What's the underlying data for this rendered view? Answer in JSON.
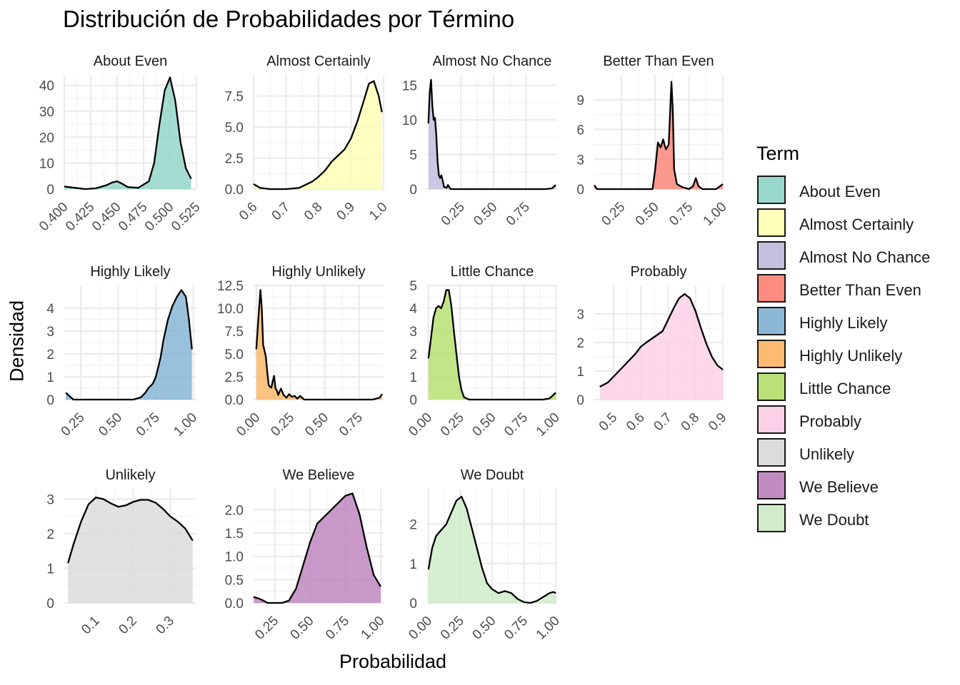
{
  "chart_data": {
    "type": "area",
    "title": "Distribución de Probabilidades por Término",
    "xlabel": "Probabilidad",
    "ylabel": "Densidad",
    "legend_title": "Term",
    "legend_position": "right",
    "grid": true,
    "panels": [
      {
        "name": "About Even",
        "color": "#8DD3C7",
        "xlim": [
          0.4,
          0.525
        ],
        "ylim": [
          0,
          44
        ],
        "x_ticks": [
          0.4,
          0.425,
          0.45,
          0.475,
          0.5,
          0.525
        ],
        "x_tick_labels": [
          "0.400",
          "0.425",
          "0.450",
          "0.475",
          "0.500",
          "0.525"
        ],
        "y_ticks": [
          0,
          10,
          20,
          30,
          40
        ],
        "y_tick_labels": [
          "0",
          "10",
          "20",
          "30",
          "40"
        ],
        "x": [
          0.4,
          0.41,
          0.42,
          0.43,
          0.44,
          0.445,
          0.45,
          0.455,
          0.46,
          0.47,
          0.48,
          0.485,
          0.49,
          0.495,
          0.5,
          0.505,
          0.51,
          0.515,
          0.52
        ],
        "y": [
          1,
          0.5,
          0,
          0.3,
          1.5,
          2.5,
          3,
          2,
          0.8,
          0.5,
          3,
          10,
          25,
          38,
          43,
          34,
          18,
          8,
          4
        ]
      },
      {
        "name": "Almost Certainly",
        "color": "#FFFFB3",
        "xlim": [
          0.6,
          1.0
        ],
        "ylim": [
          0,
          9.2
        ],
        "x_ticks": [
          0.6,
          0.7,
          0.8,
          0.9,
          1.0
        ],
        "x_tick_labels": [
          "0.6",
          "0.7",
          "0.8",
          "0.9",
          "1.0"
        ],
        "y_ticks": [
          0,
          2.5,
          5,
          7.5
        ],
        "y_tick_labels": [
          "0.0",
          "2.5",
          "5.0",
          "7.5"
        ],
        "x": [
          0.6,
          0.62,
          0.65,
          0.7,
          0.74,
          0.78,
          0.8,
          0.82,
          0.84,
          0.86,
          0.88,
          0.9,
          0.92,
          0.94,
          0.955,
          0.97,
          0.985,
          0.995
        ],
        "y": [
          0.4,
          0.1,
          0,
          0,
          0.1,
          0.6,
          1.0,
          1.5,
          2.2,
          2.7,
          3.2,
          4.1,
          5.5,
          7.2,
          8.5,
          8.7,
          7.5,
          6.2
        ]
      },
      {
        "name": "Almost No Chance",
        "color": "#BEBADA",
        "xlim": [
          -0.01,
          0.99
        ],
        "ylim": [
          0,
          16.5
        ],
        "x_ticks": [
          0.25,
          0.5,
          0.75
        ],
        "x_tick_labels": [
          "0.25",
          "0.50",
          "0.75"
        ],
        "y_ticks": [
          0,
          5,
          10,
          15
        ],
        "y_tick_labels": [
          "0",
          "5",
          "10",
          "15"
        ],
        "x": [
          0,
          0.01,
          0.02,
          0.03,
          0.04,
          0.05,
          0.06,
          0.07,
          0.08,
          0.09,
          0.1,
          0.11,
          0.12,
          0.14,
          0.15,
          0.17,
          0.2,
          0.5,
          0.9,
          0.95,
          0.98
        ],
        "y": [
          9.5,
          14,
          15.8,
          12,
          10,
          10.3,
          8,
          4,
          2,
          1.6,
          2,
          1.2,
          0.3,
          0.2,
          0.6,
          0,
          0,
          0,
          0,
          0.1,
          0.6
        ]
      },
      {
        "name": "Better Than Even",
        "color": "#FB8072",
        "xlim": [
          0.05,
          1.0
        ],
        "ylim": [
          0,
          11.5
        ],
        "x_ticks": [
          0.25,
          0.5,
          0.75,
          1.0
        ],
        "x_tick_labels": [
          "0.25",
          "0.50",
          "0.75",
          "1.00"
        ],
        "y_ticks": [
          0,
          3,
          6,
          9
        ],
        "y_tick_labels": [
          "0",
          "3",
          "6",
          "9"
        ],
        "x": [
          0.05,
          0.07,
          0.1,
          0.3,
          0.48,
          0.5,
          0.52,
          0.54,
          0.56,
          0.57,
          0.58,
          0.6,
          0.62,
          0.63,
          0.64,
          0.66,
          0.7,
          0.75,
          0.78,
          0.8,
          0.82,
          0.85,
          0.9,
          0.95,
          1.0
        ],
        "y": [
          0.4,
          0,
          0,
          0,
          0,
          2,
          4.7,
          4.2,
          5,
          4.4,
          4,
          4.5,
          10.8,
          8,
          2,
          0.5,
          0.2,
          0,
          0.3,
          1.1,
          0.3,
          0,
          0,
          0,
          0.5
        ]
      },
      {
        "name": "Highly Likely",
        "color": "#80B1D3",
        "xlim": [
          0.14,
          1.02
        ],
        "ylim": [
          0,
          5.0
        ],
        "x_ticks": [
          0.25,
          0.5,
          0.75,
          1.0
        ],
        "x_tick_labels": [
          "0.25",
          "0.50",
          "0.75",
          "1.00"
        ],
        "y_ticks": [
          0,
          1,
          2,
          3,
          4
        ],
        "y_tick_labels": [
          "0",
          "1",
          "2",
          "3",
          "4"
        ],
        "x": [
          0.15,
          0.2,
          0.25,
          0.5,
          0.6,
          0.65,
          0.68,
          0.7,
          0.73,
          0.75,
          0.78,
          0.8,
          0.83,
          0.86,
          0.89,
          0.92,
          0.95,
          0.97,
          0.99
        ],
        "y": [
          0.3,
          0,
          0,
          0,
          0,
          0.1,
          0.3,
          0.5,
          0.7,
          1.0,
          1.8,
          2.6,
          3.5,
          4.1,
          4.5,
          4.8,
          4.5,
          3.5,
          2.2
        ]
      },
      {
        "name": "Highly Unlikely",
        "color": "#FDB462",
        "xlim": [
          -0.02,
          0.93
        ],
        "ylim": [
          0,
          12.5
        ],
        "x_ticks": [
          0,
          0.25,
          0.5,
          0.75
        ],
        "x_tick_labels": [
          "0.00",
          "0.25",
          "0.50",
          "0.75"
        ],
        "y_ticks": [
          0,
          2.5,
          5,
          7.5,
          10,
          12.5
        ],
        "y_tick_labels": [
          "0.0",
          "2.5",
          "5.0",
          "7.5",
          "10.0",
          "12.5"
        ],
        "x": [
          0,
          0.02,
          0.03,
          0.04,
          0.05,
          0.07,
          0.08,
          0.09,
          0.1,
          0.11,
          0.12,
          0.13,
          0.14,
          0.15,
          0.16,
          0.18,
          0.2,
          0.22,
          0.24,
          0.26,
          0.28,
          0.3,
          0.32,
          0.35,
          0.5,
          0.85,
          0.9,
          0.92
        ],
        "y": [
          5.5,
          10,
          12,
          10,
          6,
          4.7,
          3,
          1.6,
          1.4,
          1.3,
          2,
          2.6,
          1.2,
          1,
          0.5,
          1.2,
          0.5,
          0.2,
          0.6,
          0.3,
          0.4,
          0.1,
          0.4,
          0,
          0,
          0,
          0.2,
          0.6
        ]
      },
      {
        "name": "Little Chance",
        "color": "#B3DE69",
        "xlim": [
          -0.01,
          1.01
        ],
        "ylim": [
          0,
          5.0
        ],
        "x_ticks": [
          0,
          0.25,
          0.5,
          0.75,
          1.0
        ],
        "x_tick_labels": [
          "0.00",
          "0.25",
          "0.50",
          "0.75",
          "1.00"
        ],
        "y_ticks": [
          0,
          1,
          2,
          3,
          4,
          5
        ],
        "y_tick_labels": [
          "0",
          "1",
          "2",
          "3",
          "4",
          "5"
        ],
        "x": [
          0,
          0.02,
          0.04,
          0.06,
          0.08,
          0.1,
          0.12,
          0.14,
          0.16,
          0.18,
          0.2,
          0.22,
          0.24,
          0.26,
          0.28,
          0.3,
          0.32,
          0.4,
          0.9,
          0.95,
          1.0
        ],
        "y": [
          1.8,
          2.7,
          3.6,
          4.0,
          4.1,
          4.0,
          4.3,
          4.8,
          4.8,
          4.1,
          3.0,
          2.0,
          1.0,
          0.4,
          0.1,
          0.05,
          0,
          0,
          0,
          0.05,
          0.3
        ]
      },
      {
        "name": "Probably",
        "color": "#FCCDE5",
        "xlim": [
          0.43,
          0.9
        ],
        "ylim": [
          0,
          4.0
        ],
        "x_ticks": [
          0.5,
          0.6,
          0.7,
          0.8,
          0.9
        ],
        "x_tick_labels": [
          "0.5",
          "0.6",
          "0.7",
          "0.8",
          "0.9"
        ],
        "y_ticks": [
          0,
          1,
          2,
          3
        ],
        "y_tick_labels": [
          "0",
          "1",
          "2",
          "3"
        ],
        "x": [
          0.45,
          0.48,
          0.5,
          0.52,
          0.55,
          0.58,
          0.6,
          0.62,
          0.65,
          0.68,
          0.7,
          0.72,
          0.74,
          0.76,
          0.78,
          0.8,
          0.82,
          0.84,
          0.86,
          0.88,
          0.9
        ],
        "y": [
          0.45,
          0.6,
          0.8,
          1.0,
          1.3,
          1.6,
          1.85,
          2.0,
          2.2,
          2.4,
          2.8,
          3.2,
          3.55,
          3.7,
          3.55,
          3.1,
          2.5,
          1.95,
          1.5,
          1.2,
          1.05
        ]
      },
      {
        "name": "Unlikely",
        "color": "#D9D9D9",
        "xlim": [
          0.015,
          0.37
        ],
        "ylim": [
          0,
          3.3
        ],
        "x_ticks": [
          0.1,
          0.2,
          0.3
        ],
        "x_tick_labels": [
          "0.1",
          "0.2",
          "0.3"
        ],
        "y_ticks": [
          0,
          1,
          2,
          3
        ],
        "y_tick_labels": [
          "0",
          "1",
          "2",
          "3"
        ],
        "x": [
          0.025,
          0.04,
          0.06,
          0.08,
          0.1,
          0.12,
          0.14,
          0.16,
          0.18,
          0.2,
          0.22,
          0.24,
          0.26,
          0.28,
          0.3,
          0.32,
          0.34,
          0.36
        ],
        "y": [
          1.15,
          1.7,
          2.35,
          2.85,
          3.05,
          3.0,
          2.88,
          2.78,
          2.82,
          2.92,
          2.98,
          2.98,
          2.9,
          2.72,
          2.5,
          2.35,
          2.15,
          1.8
        ]
      },
      {
        "name": "We Believe",
        "color": "#BC80BD",
        "xlim": [
          0.1,
          1.02
        ],
        "ylim": [
          0,
          2.45
        ],
        "x_ticks": [
          0.25,
          0.5,
          0.75,
          1.0
        ],
        "x_tick_labels": [
          "0.25",
          "0.50",
          "0.75",
          "1.00"
        ],
        "y_ticks": [
          0,
          0.5,
          1,
          1.5,
          2
        ],
        "y_tick_labels": [
          "0.0",
          "0.5",
          "1.0",
          "1.5",
          "2.0"
        ],
        "x": [
          0.1,
          0.15,
          0.2,
          0.3,
          0.35,
          0.4,
          0.45,
          0.5,
          0.55,
          0.6,
          0.65,
          0.7,
          0.75,
          0.8,
          0.85,
          0.9,
          0.95,
          1.0
        ],
        "y": [
          0.13,
          0.08,
          0,
          0,
          0.05,
          0.3,
          0.8,
          1.3,
          1.7,
          1.85,
          2.0,
          2.15,
          2.3,
          2.35,
          1.9,
          1.2,
          0.6,
          0.35
        ]
      },
      {
        "name": "We Doubt",
        "color": "#CCEBC5",
        "xlim": [
          -0.01,
          1.01
        ],
        "ylim": [
          0,
          2.9
        ],
        "x_ticks": [
          0,
          0.25,
          0.5,
          0.75,
          1.0
        ],
        "x_tick_labels": [
          "0.00",
          "0.25",
          "0.50",
          "0.75",
          "1.00"
        ],
        "y_ticks": [
          0,
          1,
          2
        ],
        "y_tick_labels": [
          "0",
          "1",
          "2"
        ],
        "x": [
          0,
          0.03,
          0.06,
          0.1,
          0.14,
          0.18,
          0.22,
          0.26,
          0.3,
          0.34,
          0.38,
          0.42,
          0.46,
          0.5,
          0.55,
          0.6,
          0.65,
          0.7,
          0.75,
          0.8,
          0.85,
          0.9,
          0.95,
          0.98,
          1.0
        ],
        "y": [
          0.85,
          1.4,
          1.7,
          1.85,
          2.0,
          2.3,
          2.6,
          2.7,
          2.4,
          1.9,
          1.4,
          0.9,
          0.5,
          0.35,
          0.25,
          0.3,
          0.25,
          0.1,
          0.02,
          0,
          0.05,
          0.15,
          0.25,
          0.28,
          0.25
        ]
      }
    ]
  }
}
